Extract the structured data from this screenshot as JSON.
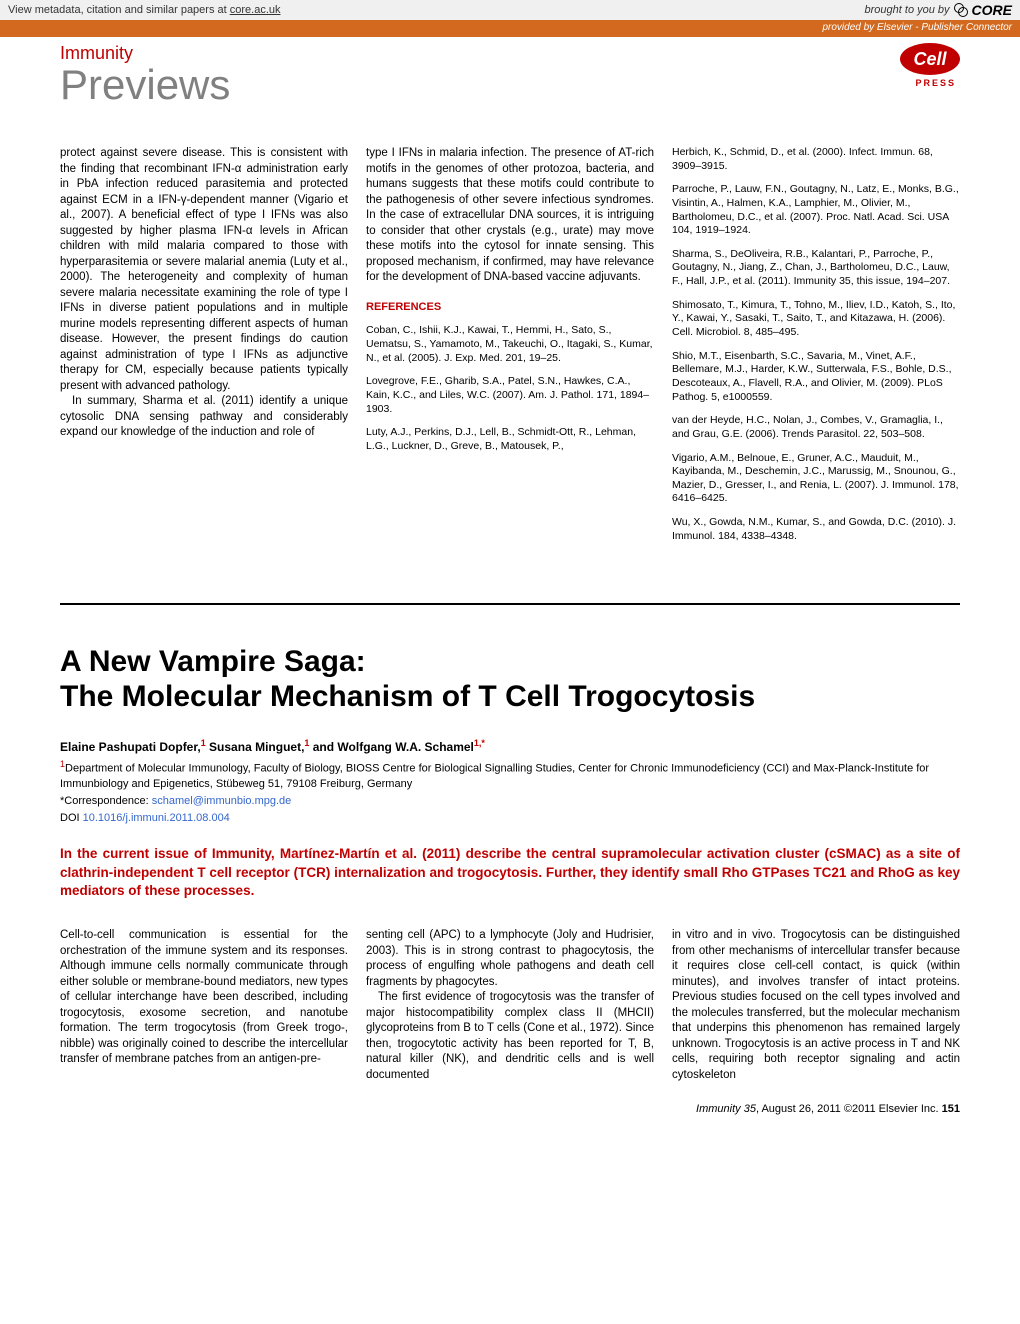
{
  "banner": {
    "metadata_text": "View metadata, citation and similar papers at ",
    "metadata_link": "core.ac.uk",
    "brought_prefix": "brought to you by ",
    "core": "CORE",
    "provided_by": "provided by Elsevier - Publisher Connector"
  },
  "masthead": {
    "journal": "Immunity",
    "section": "Previews",
    "logo_text": "Cell",
    "logo_press": "PRESS"
  },
  "article1": {
    "col1": "protect against severe disease. This is consistent with the finding that recombinant IFN-α administration early in PbA infection reduced parasitemia and protected against ECM in a IFN-γ-dependent manner (Vigario et al., 2007). A beneficial effect of type I IFNs was also suggested by higher plasma IFN-α levels in African children with mild malaria compared to those with hyperparasitemia or severe malarial anemia (Luty et al., 2000). The heterogeneity and complexity of human severe malaria necessitate examining the role of type I IFNs in diverse patient populations and in multiple murine models representing different aspects of human disease. However, the present findings do caution against administration of type I IFNs as adjunctive therapy for CM, especially because patients typically present with advanced pathology.",
    "col1_p2": "In summary, Sharma et al. (2011) identify a unique cytosolic DNA sensing pathway and considerably expand our knowledge of the induction and role of",
    "col2": "type I IFNs in malaria infection. The presence of AT-rich motifs in the genomes of other protozoa, bacteria, and humans suggests that these motifs could contribute to the pathogenesis of other severe infectious syndromes. In the case of extracellular DNA sources, it is intriguing to consider that other crystals (e.g., urate) may move these motifs into the cytosol for innate sensing. This proposed mechanism, if confirmed, may have relevance for the development of DNA-based vaccine adjuvants.",
    "ref_heading": "REFERENCES",
    "refs_col2": [
      "Coban, C., Ishii, K.J., Kawai, T., Hemmi, H., Sato, S., Uematsu, S., Yamamoto, M., Takeuchi, O., Itagaki, S., Kumar, N., et al. (2005). J. Exp. Med. 201, 19–25.",
      "Lovegrove, F.E., Gharib, S.A., Patel, S.N., Hawkes, C.A., Kain, K.C., and Liles, W.C. (2007). Am. J. Pathol. 171, 1894–1903.",
      "Luty, A.J., Perkins, D.J., Lell, B., Schmidt-Ott, R., Lehman, L.G., Luckner, D., Greve, B., Matousek, P.,"
    ],
    "refs_col3": [
      "Herbich, K., Schmid, D., et al. (2000). Infect. Immun. 68, 3909–3915.",
      "Parroche, P., Lauw, F.N., Goutagny, N., Latz, E., Monks, B.G., Visintin, A., Halmen, K.A., Lamphier, M., Olivier, M., Bartholomeu, D.C., et al. (2007). Proc. Natl. Acad. Sci. USA 104, 1919–1924.",
      "Sharma, S., DeOliveira, R.B., Kalantari, P., Parroche, P., Goutagny, N., Jiang, Z., Chan, J., Bartholomeu, D.C., Lauw, F., Hall, J.P., et al. (2011). Immunity 35, this issue, 194–207.",
      "Shimosato, T., Kimura, T., Tohno, M., Iliev, I.D., Katoh, S., Ito, Y., Kawai, Y., Sasaki, T., Saito, T., and Kitazawa, H. (2006). Cell. Microbiol. 8, 485–495.",
      "Shio, M.T., Eisenbarth, S.C., Savaria, M., Vinet, A.F., Bellemare, M.J., Harder, K.W., Sutterwala, F.S., Bohle, D.S., Descoteaux, A., Flavell, R.A., and Olivier, M. (2009). PLoS Pathog. 5, e1000559.",
      "van der Heyde, H.C., Nolan, J., Combes, V., Gramaglia, I., and Grau, G.E. (2006). Trends Parasitol. 22, 503–508.",
      "Vigario, A.M., Belnoue, E., Gruner, A.C., Mauduit, M., Kayibanda, M., Deschemin, J.C., Marussig, M., Snounou, G., Mazier, D., Gresser, I., and Renia, L. (2007). J. Immunol. 178, 6416–6425.",
      "Wu, X., Gowda, N.M., Kumar, S., and Gowda, D.C. (2010). J. Immunol. 184, 4338–4348."
    ]
  },
  "article2": {
    "title_line1": "A New Vampire Saga:",
    "title_line2": "The Molecular Mechanism of T Cell Trogocytosis",
    "authors_html": "Elaine Pashupati Dopfer,|1| Susana Minguet,|1| and Wolfgang W.A. Schamel|1,*|",
    "affil1": "1Department of Molecular Immunology, Faculty of Biology, BIOSS Centre for Biological Signalling Studies, Center for Chronic Immunodeficiency (CCI) and Max-Planck-Institute for Immunbiology and Epigenetics, Stübeweg 51, 79108 Freiburg, Germany",
    "corr_prefix": "*Correspondence: ",
    "corr_email": "schamel@immunbio.mpg.de",
    "doi_prefix": "DOI ",
    "doi": "10.1016/j.immuni.2011.08.004",
    "abstract": "In the current issue of Immunity, Martínez-Martín et al. (2011) describe the central supramolecular activation cluster (cSMAC) as a site of clathrin-independent T cell receptor (TCR) internalization and trogocytosis. Further, they identify small Rho GTPases TC21 and RhoG as key mediators of these processes.",
    "body_col1": "Cell-to-cell communication is essential for the orchestration of the immune system and its responses. Although immune cells normally communicate through either soluble or membrane-bound mediators, new types of cellular interchange have been described, including trogocytosis, exosome secretion, and nanotube formation. The term trogocytosis (from Greek trogo-, nibble) was originally coined to describe the intercellular transfer of membrane patches from an antigen-pre-",
    "body_col2_p1": "senting cell (APC) to a lymphocyte (Joly and Hudrisier, 2003). This is in strong contrast to phagocytosis, the process of engulfing whole pathogens and death cell fragments by phagocytes.",
    "body_col2_p2": "The first evidence of trogocytosis was the transfer of major histocompatibility complex class II (MHCII) glycoproteins from B to T cells (Cone et al., 1972). Since then, trogocytotic activity has been reported for T, B, natural killer (NK), and dendritic cells and is well documented",
    "body_col3": "in vitro and in vivo. Trogocytosis can be distinguished from other mechanisms of intercellular transfer because it requires close cell-cell contact, is quick (within minutes), and involves transfer of intact proteins. Previous studies focused on the cell types involved and the molecules transferred, but the molecular mechanism that underpins this phenomenon has remained largely unknown. Trogocytosis is an active process in T and NK cells, requiring both receptor signaling and actin cytoskeleton"
  },
  "footer": {
    "journal": "Immunity",
    "vol": " 35",
    "date": ", August 26, 2011 ",
    "copyright": "©2011 Elsevier Inc.",
    "page": "   151"
  },
  "colors": {
    "red": "#c00000",
    "orange": "#d2691e",
    "link": "#3366cc",
    "grey": "#808080"
  }
}
